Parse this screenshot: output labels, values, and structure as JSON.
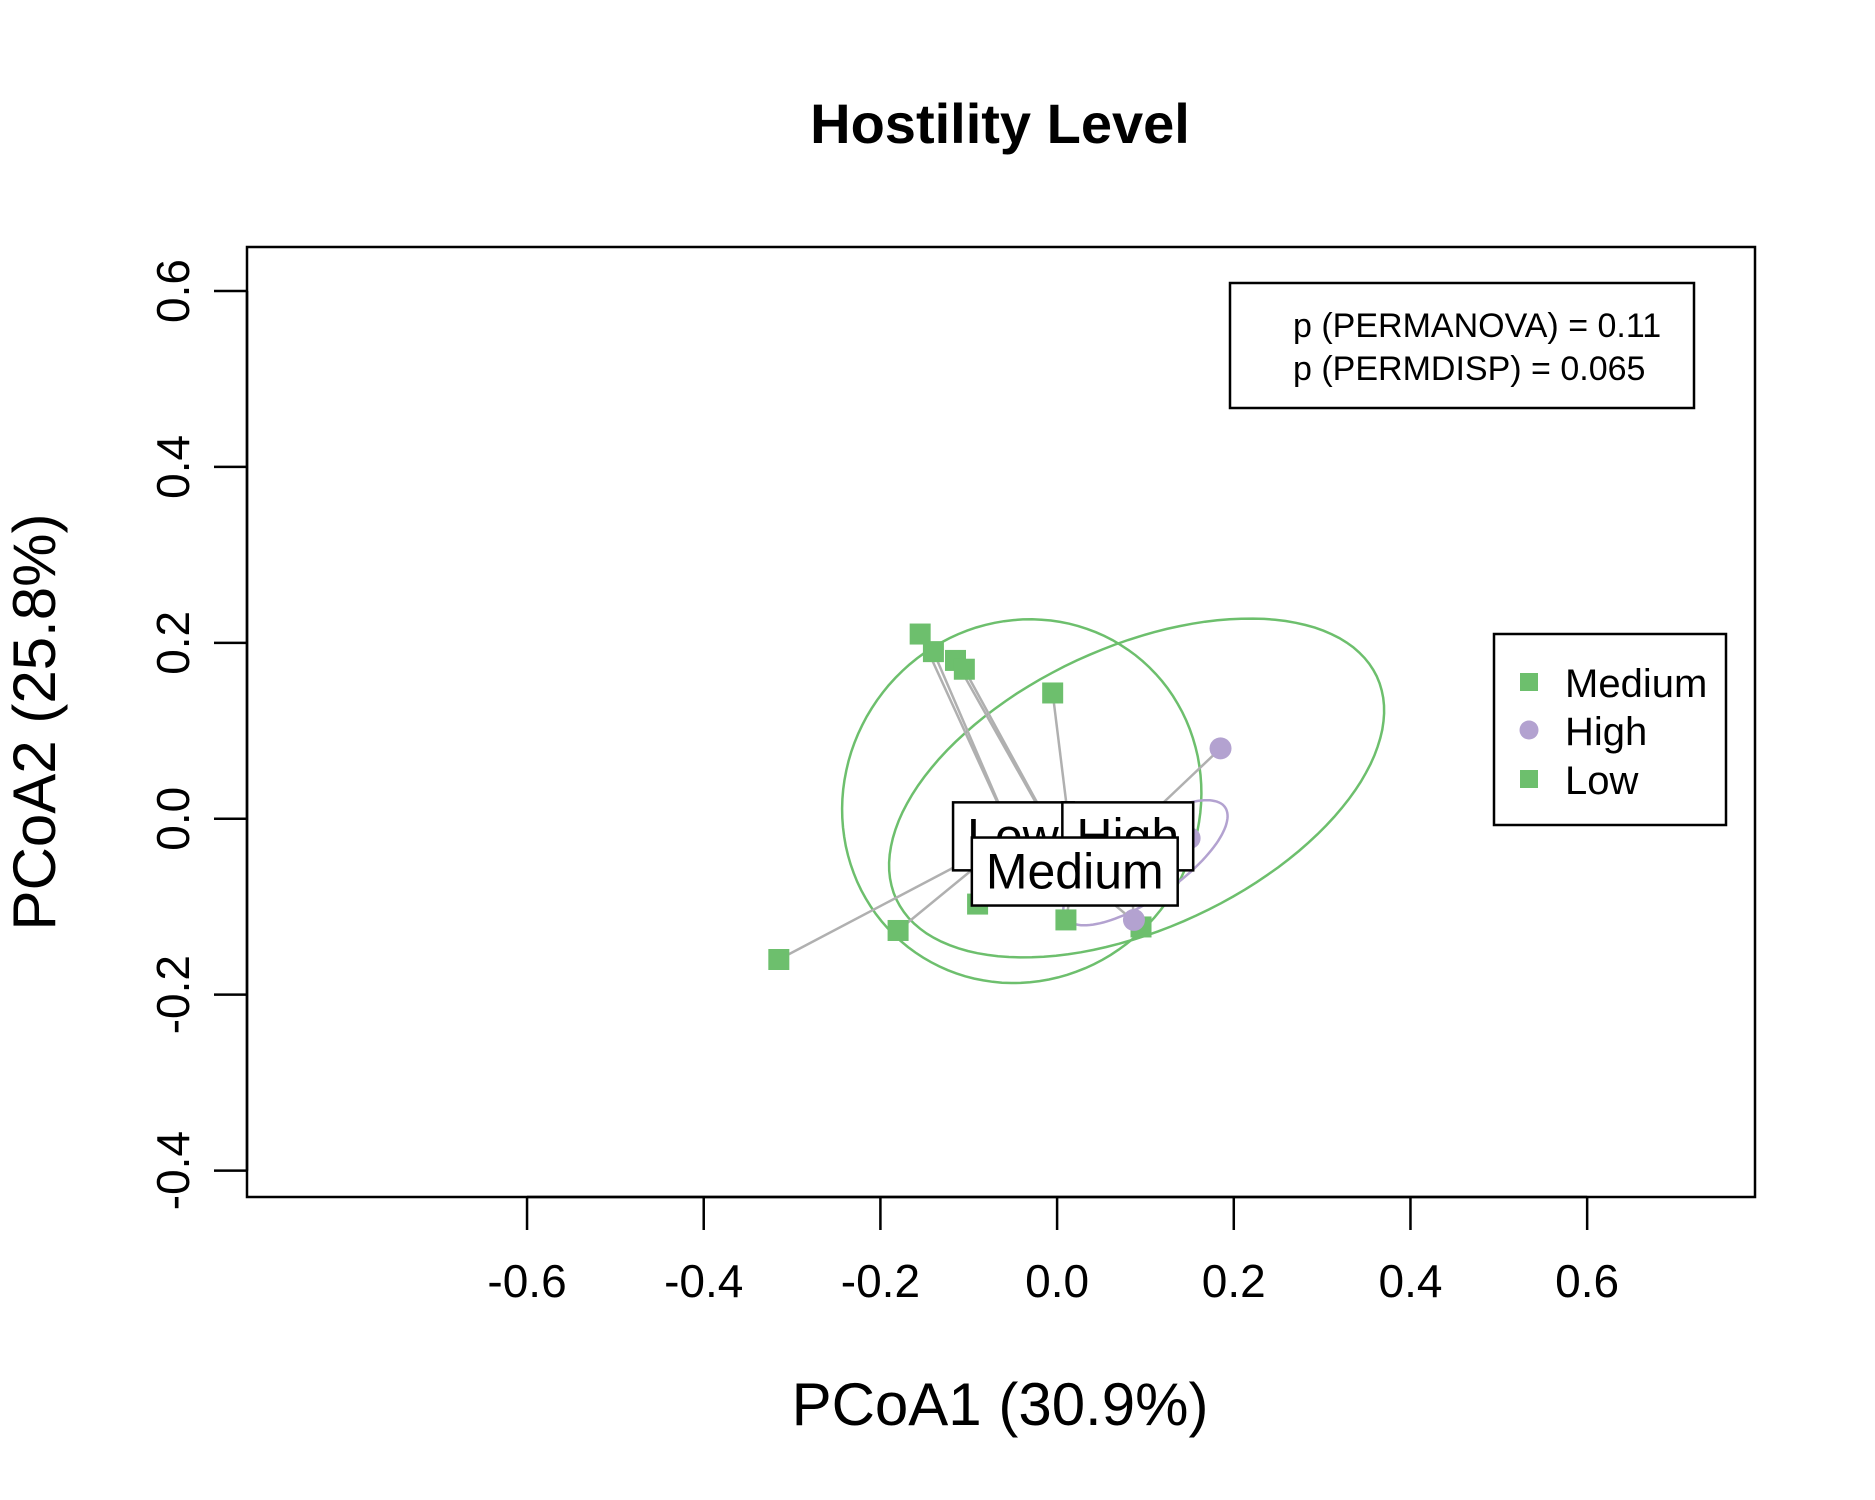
{
  "chart_data": {
    "type": "scatter",
    "title": "Hostility Level",
    "xlabel": "PCoA1 (30.9%)",
    "ylabel": "PCoA2 (25.8%)",
    "xlim": [
      -0.917,
      0.79
    ],
    "ylim": [
      -0.43,
      0.65
    ],
    "x_ticks": [
      "-0.6",
      "-0.4",
      "-0.2",
      "0.0",
      "0.2",
      "0.4",
      "0.6"
    ],
    "y_ticks": [
      "-0.4",
      "-0.2",
      "0.0",
      "0.2",
      "0.4",
      "0.6"
    ],
    "grid": false,
    "legend_position": "right",
    "stats": [
      "p (PERMANOVA) = 0.11",
      "p (PERMDISP) = 0.065"
    ],
    "colors": {
      "Medium": "#6dbf6d",
      "High": "#b3a2d0",
      "Low": "#6dbf6d",
      "spoke": "#b0b0b0"
    },
    "series": [
      {
        "name": "Medium",
        "marker": "square",
        "centroid": [
          0.02,
          -0.06
        ],
        "points": [
          [
            -0.115,
            0.18
          ],
          [
            -0.105,
            0.17
          ],
          [
            -0.005,
            0.143
          ],
          [
            -0.09,
            -0.097
          ],
          [
            0.01,
            -0.115
          ],
          [
            0.025,
            -0.08
          ],
          [
            0.095,
            -0.123
          ]
        ]
      },
      {
        "name": "High",
        "marker": "circle",
        "centroid": [
          0.08,
          -0.02
        ],
        "points": [
          [
            0.185,
            0.08
          ],
          [
            -0.01,
            -0.085
          ],
          [
            0.087,
            -0.115
          ],
          [
            0.15,
            -0.022
          ]
        ]
      },
      {
        "name": "Low",
        "marker": "square",
        "centroid": [
          -0.05,
          -0.02
        ],
        "points": [
          [
            -0.155,
            0.21
          ],
          [
            -0.14,
            0.19
          ],
          [
            -0.315,
            -0.16
          ],
          [
            -0.18,
            -0.127
          ]
        ]
      }
    ],
    "ellipses": [
      {
        "group": "Low",
        "cx": -0.04,
        "cy": 0.02,
        "rx": 0.21,
        "ry": 0.2,
        "angle": 55,
        "color": "#6dbf6d"
      },
      {
        "group": "Medium",
        "cx": 0.09,
        "cy": 0.035,
        "rx": 0.3,
        "ry": 0.16,
        "angle": 25,
        "color": "#6dbf6d"
      },
      {
        "group": "High",
        "cx": 0.1,
        "cy": -0.05,
        "rx": 0.11,
        "ry": 0.04,
        "angle": 35,
        "color": "#b3a2d0"
      }
    ]
  }
}
